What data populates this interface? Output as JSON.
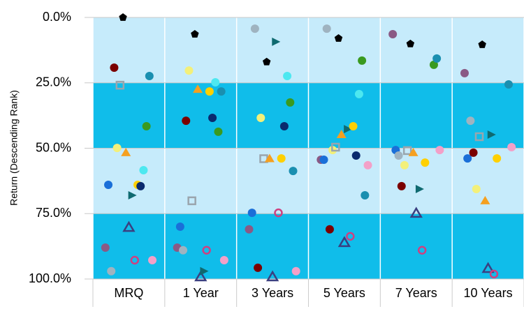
{
  "chart_data": {
    "type": "scatter",
    "y_label": "Return (Descending Rank)",
    "categories": [
      "MRQ",
      "1 Year",
      "3 Years",
      "5 Years",
      "7 Years",
      "10 Years"
    ],
    "ylim": [
      0,
      100
    ],
    "y_reversed": true,
    "yticks": [
      {
        "value": 0,
        "label": "0.0%"
      },
      {
        "value": 25,
        "label": "25.0%"
      },
      {
        "value": 50,
        "label": "50.0%"
      },
      {
        "value": 75,
        "label": "75.0%"
      },
      {
        "value": 100,
        "label": "100.0%"
      }
    ],
    "band_colors": [
      "#c6ebfb",
      "#10bdea"
    ],
    "series": [
      {
        "color": "#8a5a85",
        "marker": "circle",
        "values": [
          88,
          88,
          81,
          54.4,
          6.4,
          21.3
        ]
      },
      {
        "color": "#1a6fd8",
        "marker": "circle",
        "values": [
          64,
          80,
          74.7,
          54.4,
          50.7,
          53.9
        ]
      },
      {
        "color": "#9fb3c0",
        "marker": "circle",
        "values": [
          97,
          89,
          4.3,
          4.3,
          52.8,
          39.5
        ]
      },
      {
        "color": "#7b0000",
        "marker": "circle",
        "values": [
          19.2,
          39.5,
          95.7,
          81,
          64.5,
          51.7
        ]
      },
      {
        "color": "#f3f07a",
        "marker": "circle",
        "values": [
          49.9,
          20.3,
          38.4,
          50.7,
          56.5,
          65.6
        ]
      },
      {
        "color": "#9aa5ad",
        "marker": "square-open",
        "values": [
          25.9,
          70.1,
          54,
          49.6,
          50.9,
          45.6
        ]
      },
      {
        "color": "#000000",
        "marker": "pentagon",
        "values": [
          0,
          6.4,
          17,
          8,
          10.1,
          10.4
        ]
      },
      {
        "color": "#f5a020",
        "marker": "triangle",
        "values": [
          51.7,
          27.5,
          54,
          44.8,
          51.7,
          70.1
        ]
      },
      {
        "color": "#3a3f80",
        "marker": "triangle-open",
        "values": [
          80.3,
          99.2,
          99.2,
          86.1,
          74.9,
          96
        ]
      },
      {
        "color": "#0f6a70",
        "marker": "triangle-right",
        "values": [
          68,
          97,
          9.3,
          42.7,
          65.6,
          44.8
        ]
      },
      {
        "color": "#d04080",
        "marker": "circle-open",
        "values": [
          92.8,
          89,
          74.7,
          83.7,
          89,
          98.1
        ]
      },
      {
        "color": "#ffd000",
        "marker": "circle",
        "values": [
          64,
          28.3,
          53.9,
          41.6,
          55.5,
          53.9
        ]
      },
      {
        "color": "#0a2a6e",
        "marker": "circle",
        "values": [
          64.5,
          38.4,
          41.6,
          52.8,
          null,
          null
        ]
      },
      {
        "color": "#4de8f0",
        "marker": "circle",
        "values": [
          58.4,
          24.8,
          22.4,
          29.3,
          null,
          null
        ]
      },
      {
        "color": "#3a9a1f",
        "marker": "circle",
        "values": [
          41.6,
          43.7,
          32.5,
          16.5,
          18.1,
          null
        ]
      },
      {
        "color": "#1a8fb0",
        "marker": "circle",
        "values": [
          22.4,
          28.3,
          58.7,
          68,
          15.7,
          25.6
        ]
      },
      {
        "color": "#f3a0c8",
        "marker": "circle",
        "values": [
          92.8,
          92.8,
          97,
          56.5,
          50.7,
          49.6
        ]
      }
    ]
  }
}
